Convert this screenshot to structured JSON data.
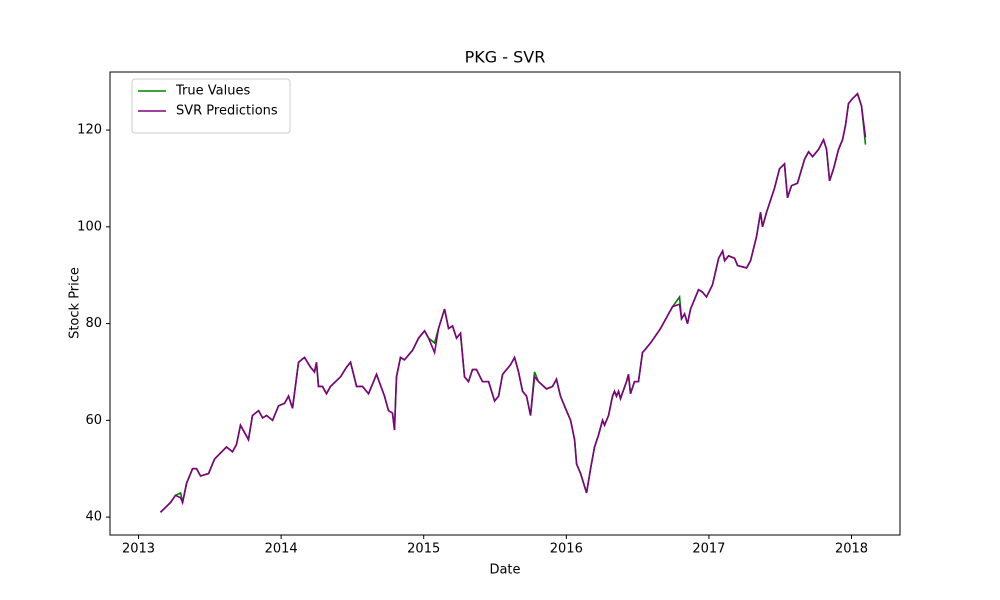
{
  "chart_data": {
    "type": "line",
    "title": "PKG - SVR",
    "xlabel": "Date",
    "ylabel": "Stock Price",
    "x": [
      2013.154,
      2013.224,
      2013.259,
      2013.295,
      2013.309,
      2013.337,
      2013.379,
      2013.407,
      2013.435,
      2013.491,
      2013.533,
      2013.617,
      2013.659,
      2013.687,
      2013.715,
      2013.771,
      2013.799,
      2013.842,
      2013.87,
      2013.898,
      2013.94,
      2013.982,
      2014.024,
      2014.052,
      2014.08,
      2014.122,
      2014.164,
      2014.206,
      2014.234,
      2014.248,
      2014.262,
      2014.29,
      2014.318,
      2014.346,
      2014.417,
      2014.459,
      2014.487,
      2014.529,
      2014.571,
      2014.613,
      2014.669,
      2014.725,
      2014.753,
      2014.781,
      2014.795,
      2014.809,
      2014.837,
      2014.865,
      2014.922,
      2014.964,
      2015.006,
      2015.034,
      2015.076,
      2015.104,
      2015.146,
      2015.174,
      2015.202,
      2015.23,
      2015.258,
      2015.286,
      2015.314,
      2015.342,
      2015.37,
      2015.412,
      2015.455,
      2015.497,
      2015.525,
      2015.553,
      2015.609,
      2015.637,
      2015.665,
      2015.693,
      2015.721,
      2015.749,
      2015.777,
      2015.805,
      2015.861,
      2015.903,
      2015.931,
      2015.959,
      2016.001,
      2016.03,
      2016.058,
      2016.072,
      2016.1,
      2016.142,
      2016.17,
      2016.198,
      2016.226,
      2016.254,
      2016.268,
      2016.296,
      2016.324,
      2016.338,
      2016.352,
      2016.366,
      2016.38,
      2016.422,
      2016.436,
      2016.45,
      2016.478,
      2016.506,
      2016.534,
      2016.563,
      2016.591,
      2016.626,
      2016.661,
      2016.689,
      2016.717,
      2016.745,
      2016.794,
      2016.808,
      2016.829,
      2016.85,
      2016.871,
      2016.927,
      2016.955,
      2016.983,
      2017.025,
      2017.068,
      2017.096,
      2017.11,
      2017.138,
      2017.18,
      2017.201,
      2017.264,
      2017.292,
      2017.334,
      2017.362,
      2017.376,
      2017.404,
      2017.432,
      2017.46,
      2017.495,
      2017.53,
      2017.551,
      2017.579,
      2017.621,
      2017.671,
      2017.699,
      2017.727,
      2017.769,
      2017.804,
      2017.825,
      2017.846,
      2017.874,
      2017.909,
      2017.937,
      2017.958,
      2017.979,
      2018.007,
      2018.042,
      2018.07,
      2018.098
    ],
    "series": [
      {
        "name": "True Values",
        "color": "#008000",
        "values": [
          41,
          43,
          44.5,
          45,
          43,
          47,
          50,
          50,
          48.5,
          49,
          52,
          54.5,
          53.5,
          55,
          59,
          56,
          61,
          62,
          60.5,
          61,
          60,
          63,
          63.5,
          65,
          62.5,
          72,
          73,
          71,
          70,
          72,
          67,
          67,
          65.5,
          67,
          69,
          71,
          72,
          67,
          67,
          65.5,
          69.5,
          65,
          62,
          61.5,
          58,
          69,
          73,
          72.5,
          74.5,
          77,
          78.5,
          77,
          76,
          79,
          83,
          79,
          79.5,
          77,
          78,
          69,
          68,
          70.5,
          70.5,
          68,
          68,
          64,
          65,
          69.5,
          71.5,
          73,
          70,
          66,
          65,
          61,
          70,
          68,
          66.5,
          67,
          68.5,
          65,
          62,
          60,
          56,
          51,
          49,
          45,
          50,
          54.5,
          57,
          60,
          59,
          61,
          65,
          66,
          65,
          66,
          64.5,
          68,
          69.5,
          65.5,
          68,
          68,
          74,
          75,
          76,
          77.5,
          79,
          80.5,
          82,
          83.5,
          85.5,
          81,
          82,
          80,
          83,
          87,
          86.5,
          85.5,
          88,
          93.5,
          95,
          93,
          94,
          93.5,
          92,
          91.5,
          93,
          98,
          103,
          100,
          103,
          105.5,
          108,
          112,
          113,
          106,
          108.5,
          109,
          114,
          115.5,
          114.5,
          116,
          118,
          116,
          109.5,
          112,
          116,
          118,
          121,
          125.5,
          126.5,
          127.5,
          125,
          117
        ]
      },
      {
        "name": "SVR Predictions",
        "color": "#800080",
        "values": [
          41,
          43,
          44.5,
          44,
          43,
          47,
          50,
          50,
          48.5,
          49,
          52,
          54.5,
          53.5,
          55,
          59,
          56,
          61,
          62,
          60.5,
          61,
          60,
          63,
          63.5,
          65,
          62.5,
          72,
          73,
          71,
          70,
          72,
          67,
          67,
          65.5,
          67,
          69,
          71,
          72,
          67,
          67,
          65.5,
          69.5,
          65,
          62,
          61.5,
          58,
          69,
          73,
          72.5,
          74.5,
          77,
          78.5,
          77,
          74,
          79,
          83,
          79,
          79.5,
          77,
          78,
          69,
          68,
          70.5,
          70.5,
          68,
          68,
          64,
          65,
          69.5,
          71.5,
          73,
          70,
          66,
          65,
          61,
          69,
          68,
          66.5,
          67,
          68.5,
          65,
          62,
          60,
          56,
          51,
          49,
          45,
          50,
          54.5,
          57,
          60,
          59,
          61,
          65,
          66,
          65,
          66,
          64.5,
          68,
          69.5,
          65.5,
          68,
          68,
          74,
          75,
          76,
          77.5,
          79,
          80.5,
          82,
          83.5,
          84,
          81,
          82,
          80,
          83,
          87,
          86.5,
          85.5,
          88,
          93.5,
          95,
          93,
          94,
          93.5,
          92,
          91.5,
          93,
          98,
          103,
          100,
          103,
          105.5,
          108,
          112,
          113,
          106,
          108.5,
          109,
          114,
          115.5,
          114.5,
          116,
          118,
          116,
          109.5,
          112,
          116,
          118,
          121,
          125.5,
          126.5,
          127.5,
          125,
          118.5
        ]
      }
    ],
    "xlim": [
      2012.8,
      2018.34
    ],
    "xticks": [
      2013,
      2014,
      2015,
      2016,
      2017,
      2018
    ],
    "ylim": [
      36.3,
      132
    ],
    "yticks": [
      40,
      60,
      80,
      100,
      120
    ],
    "legend": "upper left"
  }
}
